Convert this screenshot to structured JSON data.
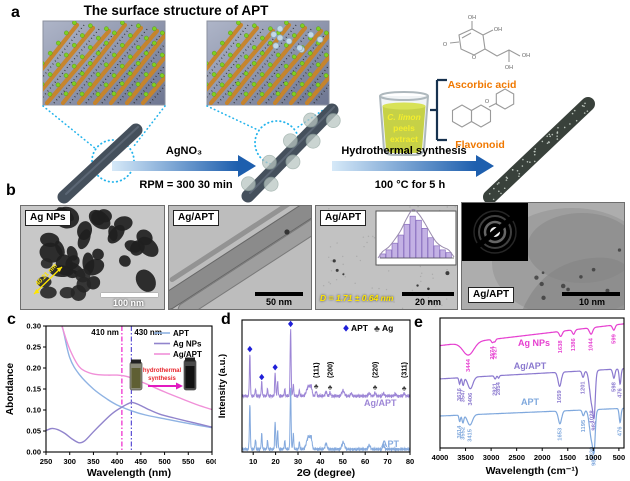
{
  "figure": {
    "panel_labels": {
      "a": "a",
      "b": "b",
      "c": "c",
      "d": "d",
      "e": "e"
    },
    "panel_a": {
      "title": "The surface structure of APT",
      "arrow1_label_top": "AgNO₃",
      "arrow1_label_bottom": "RPM = 300  30 min",
      "arrow2_label_top": "Hydrothermal synthesis",
      "arrow2_label_bottom": "100 °C for 5 h",
      "beaker_lines": [
        "C. limon",
        "peels",
        "extract"
      ],
      "molecule_labels": {
        "ascorbic": "Ascorbic acid",
        "flavonoid": "Flavonoid"
      },
      "atom_labels": {
        "oh": "OH",
        "o": "O"
      },
      "accent_orange": "#f07800",
      "accent_cyan": "#25b4ec"
    },
    "panel_b": {
      "tems": [
        {
          "label": "Ag NPs",
          "scale_bar": "100 nm",
          "annotation": "40.21 nm"
        },
        {
          "label": "Ag/APT",
          "scale_bar": "50 nm",
          "annotation": ""
        },
        {
          "label": "Ag/APT",
          "scale_bar": "20 nm",
          "annotation": "D = 1.71 ± 0.64 nm"
        },
        {
          "label": "Ag/APT",
          "scale_bar": "10 nm",
          "annotation": ""
        }
      ]
    }
  },
  "chart_data": [
    {
      "id": "uvvis",
      "type": "line",
      "title": "",
      "xlabel": "Wavelength (nm)",
      "ylabel": "Abordance",
      "xlim": [
        250,
        600
      ],
      "ylim": [
        0.0,
        0.3
      ],
      "xticks": [
        250,
        300,
        350,
        400,
        450,
        500,
        550,
        600
      ],
      "yticks": [
        0.0,
        0.05,
        0.1,
        0.15,
        0.2,
        0.25,
        0.3
      ],
      "grid": false,
      "legend_position": "top-right",
      "annotations": [
        {
          "text": "410 nm",
          "x": 410,
          "color": "#ee22cc"
        },
        {
          "text": "430 nm",
          "x": 430,
          "color": "#5b4fd4"
        }
      ],
      "series": [
        {
          "name": "APT",
          "color": "#8fb3e3",
          "points": [
            [
              250,
              0.42
            ],
            [
              270,
              0.345
            ],
            [
              285,
              0.295
            ],
            [
              300,
              0.225
            ],
            [
              320,
              0.185
            ],
            [
              350,
              0.15
            ],
            [
              380,
              0.125
            ],
            [
              400,
              0.112
            ],
            [
              410,
              0.107
            ],
            [
              430,
              0.098
            ],
            [
              460,
              0.088
            ],
            [
              500,
              0.079
            ],
            [
              550,
              0.068
            ],
            [
              600,
              0.058
            ]
          ]
        },
        {
          "name": "Ag NPs",
          "color": "#9184cc",
          "points": [
            [
              250,
              0.051
            ],
            [
              262,
              0.056
            ],
            [
              275,
              0.053
            ],
            [
              290,
              0.044
            ],
            [
              305,
              0.031
            ],
            [
              320,
              0.022
            ],
            [
              332,
              0.027
            ],
            [
              350,
              0.048
            ],
            [
              370,
              0.071
            ],
            [
              390,
              0.092
            ],
            [
              410,
              0.107
            ],
            [
              425,
              0.116
            ],
            [
              432,
              0.118
            ],
            [
              445,
              0.113
            ],
            [
              465,
              0.102
            ],
            [
              490,
              0.09
            ],
            [
              520,
              0.081
            ],
            [
              560,
              0.07
            ],
            [
              600,
              0.059
            ]
          ]
        },
        {
          "name": "Ag/APT",
          "color": "#f090d8",
          "points": [
            [
              250,
              0.42
            ],
            [
              272,
              0.345
            ],
            [
              285,
              0.295
            ],
            [
              300,
              0.245
            ],
            [
              320,
              0.203
            ],
            [
              340,
              0.189
            ],
            [
              360,
              0.184
            ],
            [
              380,
              0.183
            ],
            [
              400,
              0.183
            ],
            [
              420,
              0.18
            ],
            [
              440,
              0.172
            ],
            [
              470,
              0.158
            ],
            [
              500,
              0.143
            ],
            [
              540,
              0.125
            ],
            [
              570,
              0.112
            ],
            [
              600,
              0.101
            ]
          ]
        }
      ],
      "inset": {
        "label_lines": [
          "hydrothermal",
          "synthesis"
        ],
        "text_color": "#e8262d",
        "arrow_color": "#e21ac0"
      }
    },
    {
      "id": "xrd",
      "type": "line",
      "xlabel": "2Θ (degree)",
      "ylabel": "Intensity (a.u.)",
      "xlim": [
        5,
        80
      ],
      "xticks": [
        10,
        20,
        30,
        40,
        50,
        60,
        70,
        80
      ],
      "grid": false,
      "legend": [
        {
          "marker": "♦",
          "label": "APT",
          "color": "#1f1fd8"
        },
        {
          "marker": "♣",
          "label": "Ag",
          "color": "#3a3a3a"
        }
      ],
      "hkl_labels": [
        {
          "text": "(111)",
          "x": 38.1
        },
        {
          "text": "(200)",
          "x": 44.3
        },
        {
          "text": "(220)",
          "x": 64.4
        },
        {
          "text": "(311)",
          "x": 77.4
        }
      ],
      "traces": [
        {
          "name": "Ag/APT",
          "color": "#9d86d6",
          "offset": 0.4,
          "peaks": [
            [
              8.5,
              0.3,
              0.3
            ],
            [
              11.0,
              0.05,
              0.3
            ],
            [
              13.8,
              0.1,
              0.3
            ],
            [
              16.4,
              0.05,
              0.3
            ],
            [
              19.8,
              0.17,
              0.3
            ],
            [
              20.9,
              0.1,
              0.3
            ],
            [
              24.1,
              0.05,
              0.3
            ],
            [
              26.7,
              0.48,
              0.3
            ],
            [
              27.9,
              0.08,
              0.3
            ],
            [
              30.6,
              0.04,
              0.3
            ],
            [
              34.7,
              0.07,
              1.2
            ],
            [
              35.9,
              0.05,
              0.5
            ],
            [
              38.1,
              0.035,
              0.4
            ],
            [
              42.5,
              0.03,
              0.5
            ],
            [
              44.3,
              0.025,
              0.4
            ],
            [
              50.1,
              0.04,
              0.8
            ],
            [
              53.8,
              0.02,
              0.5
            ],
            [
              61.8,
              0.02,
              0.6
            ],
            [
              64.4,
              0.025,
              0.4
            ],
            [
              68.2,
              0.02,
              0.5
            ],
            [
              73.5,
              0.015,
              0.5
            ],
            [
              77.4,
              0.02,
              0.4
            ]
          ],
          "diamond_marks": [
            8.5,
            13.8,
            19.8,
            26.7
          ],
          "club_marks": [
            38.1,
            44.3,
            64.4,
            77.4
          ]
        },
        {
          "name": "APT",
          "color": "#85aade",
          "offset": 0.02,
          "peaks": [
            [
              8.5,
              0.32,
              0.3
            ],
            [
              11.0,
              0.07,
              0.3
            ],
            [
              13.8,
              0.11,
              0.3
            ],
            [
              16.4,
              0.06,
              0.3
            ],
            [
              19.8,
              0.2,
              0.3
            ],
            [
              20.9,
              0.13,
              0.3
            ],
            [
              24.1,
              0.06,
              0.3
            ],
            [
              26.7,
              0.44,
              0.3
            ],
            [
              27.9,
              0.11,
              0.3
            ],
            [
              30.6,
              0.05,
              0.3
            ],
            [
              34.7,
              0.09,
              1.2
            ],
            [
              35.9,
              0.06,
              0.5
            ],
            [
              42.5,
              0.04,
              0.6
            ],
            [
              50.2,
              0.05,
              0.8
            ],
            [
              61.8,
              0.03,
              0.6
            ],
            [
              68.2,
              0.03,
              0.5
            ]
          ],
          "diamond_marks": [],
          "club_marks": []
        }
      ]
    },
    {
      "id": "ftir",
      "type": "line",
      "xlabel": "Wavelength (cm⁻¹)",
      "ylabel": "",
      "xlim": [
        4000,
        400
      ],
      "xticks": [
        4000,
        3500,
        3000,
        2500,
        2000,
        1500,
        1000,
        500
      ],
      "grid": false,
      "traces": [
        {
          "name": "Ag NPs",
          "color": "#e63fd0",
          "baseline": [
            0.8,
            0.97
          ],
          "dips": [
            [
              3444,
              0.1,
              150
            ],
            [
              2974,
              0.025,
              30
            ],
            [
              2927,
              0.02,
              25
            ],
            [
              1638,
              0.04,
              40
            ],
            [
              1386,
              0.035,
              35
            ],
            [
              1044,
              0.05,
              45
            ],
            [
              599,
              0.04,
              35
            ]
          ],
          "peak_labels": [
            "3444",
            "2974",
            "2927",
            "1638",
            "1386",
            "1044",
            "599"
          ],
          "label_x": [
            3444,
            2974,
            2927,
            1638,
            1386,
            1044,
            599
          ]
        },
        {
          "name": "Ag/APT",
          "color": "#8b79cf",
          "baseline": [
            0.54,
            0.62
          ],
          "dips": [
            [
              3616,
              0.05,
              20
            ],
            [
              3547,
              0.06,
              25
            ],
            [
              3406,
              0.09,
              70
            ],
            [
              2921,
              0.025,
              25
            ],
            [
              2854,
              0.02,
              20
            ],
            [
              1659,
              0.11,
              45
            ],
            [
              1201,
              0.05,
              30
            ],
            [
              1028,
              0.26,
              60
            ],
            [
              982,
              0.22,
              30
            ],
            [
              598,
              0.07,
              30
            ],
            [
              476,
              0.12,
              25
            ]
          ],
          "peak_labels": [
            "3616",
            "3547",
            "3406",
            "2921",
            "2854",
            "1659",
            "1201",
            "1028",
            "982",
            "598",
            "476"
          ],
          "label_x": [
            3616,
            3547,
            3406,
            2921,
            2854,
            1659,
            1201,
            1028,
            982,
            598,
            476
          ]
        },
        {
          "name": "APT",
          "color": "#7fa8dd",
          "baseline": [
            0.25,
            0.31
          ],
          "dips": [
            [
              3614,
              0.05,
              20
            ],
            [
              3552,
              0.06,
              25
            ],
            [
              3415,
              0.08,
              70
            ],
            [
              1653,
              0.1,
              45
            ],
            [
              1195,
              0.045,
              30
            ],
            [
              1030,
              0.24,
              60
            ],
            [
              984,
              0.2,
              30
            ],
            [
              476,
              0.11,
              25
            ]
          ],
          "peak_labels": [
            "3614",
            "3552",
            "3415",
            "1653",
            "1195",
            "1030",
            "984",
            "476"
          ],
          "label_x": [
            3614,
            3552,
            3415,
            1653,
            1195,
            1030,
            984,
            476
          ]
        }
      ]
    }
  ]
}
